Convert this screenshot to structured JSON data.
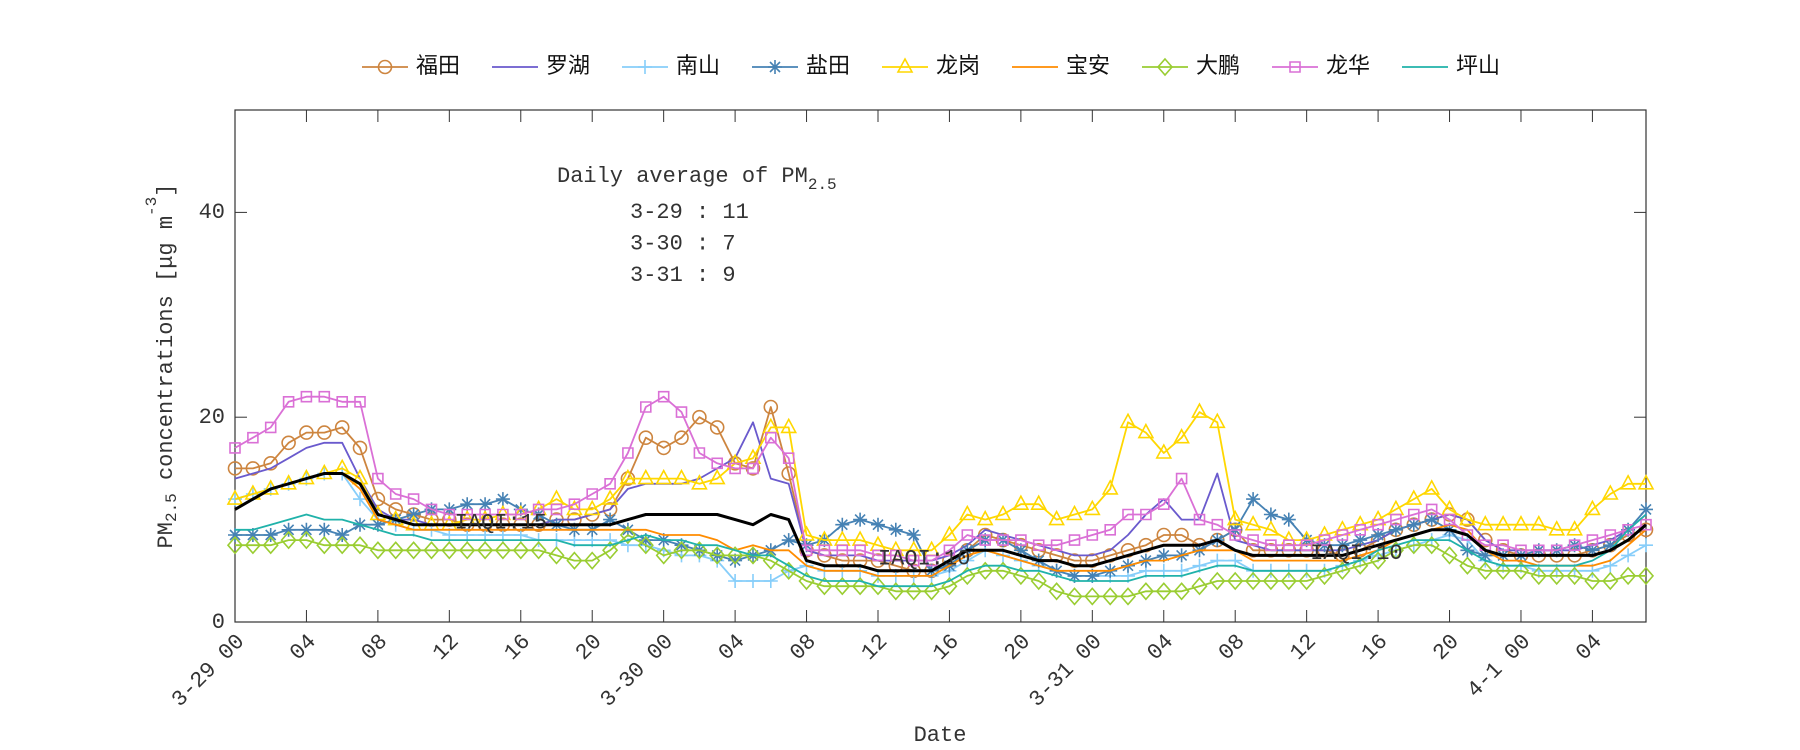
{
  "chart_data": {
    "type": "line",
    "legend": "top",
    "xlabel": "Date",
    "ylabel": [
      "PM",
      "2.5",
      " concentrations [μg m",
      "-3",
      "]"
    ],
    "annotations": {
      "title": [
        "Daily average of PM",
        "2.5"
      ],
      "lines": [
        "3-29 : 11",
        "3-30 : 7",
        "3-31 : 9"
      ],
      "iaqi": [
        "IAQI:15",
        "IAQI:10",
        "IAQI:10"
      ]
    },
    "x": [
      0,
      1,
      2,
      3,
      4,
      5,
      6,
      7,
      8,
      9,
      10,
      11,
      12,
      13,
      14,
      15,
      16,
      17,
      18,
      19,
      20,
      21,
      22,
      23,
      24,
      25,
      26,
      27,
      28,
      29,
      30,
      31,
      32,
      33,
      34,
      35,
      36,
      37,
      38,
      39,
      40,
      41,
      42,
      43,
      44,
      45,
      46,
      47,
      48,
      49,
      50,
      51,
      52,
      53,
      54,
      55,
      56,
      57,
      58,
      59,
      60,
      61,
      62,
      63,
      64,
      65,
      66,
      67,
      68,
      69,
      70,
      71,
      72,
      73,
      74,
      75,
      76,
      77,
      78,
      79
    ],
    "xlim": [
      0,
      79
    ],
    "xticks": [
      {
        "value": 0,
        "label": "3-29 00"
      },
      {
        "value": 4,
        "label": "04"
      },
      {
        "value": 8,
        "label": "08"
      },
      {
        "value": 12,
        "label": "12"
      },
      {
        "value": 16,
        "label": "16"
      },
      {
        "value": 20,
        "label": "20"
      },
      {
        "value": 24,
        "label": "3-30 00"
      },
      {
        "value": 28,
        "label": "04"
      },
      {
        "value": 32,
        "label": "08"
      },
      {
        "value": 36,
        "label": "12"
      },
      {
        "value": 40,
        "label": "16"
      },
      {
        "value": 44,
        "label": "20"
      },
      {
        "value": 48,
        "label": "3-31 00"
      },
      {
        "value": 52,
        "label": "04"
      },
      {
        "value": 56,
        "label": "08"
      },
      {
        "value": 60,
        "label": "12"
      },
      {
        "value": 64,
        "label": "16"
      },
      {
        "value": 68,
        "label": "20"
      },
      {
        "value": 72,
        "label": "4-1 00"
      },
      {
        "value": 76,
        "label": "04"
      }
    ],
    "ylim": [
      0,
      50
    ],
    "yticks": [
      0,
      20,
      40
    ],
    "grid": false,
    "series": [
      {
        "name": "福田",
        "color": "#cd853f",
        "marker": "o",
        "values": [
          15,
          15,
          15.5,
          17.5,
          18.5,
          18.5,
          19,
          17,
          12,
          11,
          10.5,
          10,
          10,
          9.5,
          9.5,
          9.5,
          9.5,
          9.5,
          10,
          10,
          10.5,
          11,
          14,
          18,
          17,
          18,
          20,
          19,
          15.5,
          15,
          21,
          14.5,
          7,
          6.5,
          6,
          6,
          6,
          5.5,
          5,
          5,
          6,
          7,
          8.5,
          8,
          7.5,
          7,
          6.5,
          6,
          6,
          6.5,
          7,
          7.5,
          8.5,
          8.5,
          7.5,
          8,
          9,
          7,
          7,
          7,
          7,
          7,
          6.5,
          7,
          8,
          9,
          9.5,
          10,
          10.5,
          10,
          8,
          7,
          6.5,
          6.5,
          6.5,
          6.5,
          7,
          7.5,
          8.5,
          9
        ]
      },
      {
        "name": "罗湖",
        "color": "#6a5acd",
        "marker": null,
        "values": [
          14,
          14.5,
          15,
          16,
          17,
          17.5,
          17.5,
          14,
          11,
          10,
          10,
          9.5,
          9.5,
          9.5,
          9.5,
          9.5,
          9.5,
          9.5,
          10,
          10,
          10.5,
          11,
          13,
          13.5,
          13.5,
          13.5,
          14,
          15,
          16,
          19.5,
          14,
          13.5,
          7,
          6.5,
          6.5,
          6.5,
          6,
          6,
          6,
          6,
          6.5,
          7.5,
          9,
          8.5,
          8,
          7.5,
          7,
          6.5,
          6.5,
          7,
          8.5,
          10.5,
          12,
          10,
          10,
          14.5,
          8,
          7.5,
          7,
          7,
          7,
          7,
          7,
          7.5,
          8,
          9,
          9.5,
          10,
          10.5,
          10,
          8,
          7,
          7,
          7,
          7,
          7,
          7.5,
          8,
          9,
          10.5
        ]
      },
      {
        "name": "南山",
        "color": "#87cefa",
        "marker": "+",
        "values": [
          12,
          12.5,
          13,
          13.5,
          14,
          14.5,
          14.5,
          12,
          10,
          9.5,
          9,
          9,
          8.5,
          8.5,
          8.5,
          8.5,
          8.5,
          8,
          8,
          8,
          8,
          8,
          7.5,
          7.5,
          7,
          6.5,
          6.5,
          6,
          4,
          4,
          4,
          5,
          5.5,
          5,
          5,
          5,
          4.5,
          4.5,
          4.5,
          4.5,
          5,
          6,
          7,
          6.5,
          6,
          5.5,
          5,
          4.5,
          4.5,
          4.5,
          4.5,
          5,
          5,
          5,
          5.5,
          6,
          6,
          5,
          5,
          5,
          5,
          5,
          5.5,
          6,
          6.5,
          7,
          7.5,
          8,
          8.5,
          8,
          6,
          5.5,
          5.5,
          5,
          5,
          5,
          5,
          5.5,
          6.5,
          7.5
        ]
      },
      {
        "name": "盐田",
        "color": "#4682b4",
        "marker": "*",
        "values": [
          8.5,
          8.5,
          8.5,
          9,
          9,
          9,
          8.5,
          9.5,
          9.5,
          10,
          10.5,
          11,
          11,
          11.5,
          11.5,
          12,
          11,
          10.5,
          9.5,
          9,
          9,
          10,
          9,
          8,
          8,
          7.5,
          7,
          6.5,
          6,
          6.5,
          7,
          8,
          7.5,
          8,
          9.5,
          10,
          9.5,
          9,
          8.5,
          5,
          5.5,
          7,
          8,
          8,
          7,
          6,
          5,
          4.5,
          4.5,
          5,
          5.5,
          6,
          6.5,
          6.5,
          7,
          8,
          9,
          12,
          10.5,
          10,
          8,
          7.5,
          7.5,
          8,
          8.5,
          9,
          9.5,
          10,
          9,
          7,
          6.5,
          6.5,
          6.5,
          7,
          7,
          7.5,
          7,
          7.5,
          9,
          11
        ]
      },
      {
        "name": "龙岗",
        "color": "#ffd700",
        "marker": "^",
        "values": [
          12,
          12.5,
          13,
          13.5,
          14,
          14.5,
          15,
          14,
          10.5,
          10,
          9.5,
          9.5,
          9.5,
          10,
          10,
          10.5,
          10.5,
          11,
          12,
          11,
          11,
          12,
          14,
          14,
          14,
          14,
          13.5,
          14,
          15.5,
          16,
          19,
          19,
          8.5,
          8,
          8,
          8,
          7.5,
          7,
          7,
          7,
          8.5,
          10.5,
          10,
          10.5,
          11.5,
          11.5,
          10,
          10.5,
          11,
          13,
          19.5,
          18.5,
          16.5,
          18,
          20.5,
          19.5,
          10,
          9.5,
          9,
          8,
          8,
          8.5,
          9,
          9.5,
          10,
          11,
          12,
          13,
          11,
          10,
          9.5,
          9.5,
          9.5,
          9.5,
          9,
          9,
          11,
          12.5,
          13.5,
          13.5
        ]
      },
      {
        "name": "宝安",
        "color": "#ff8c00",
        "marker": null,
        "values": [
          11,
          12,
          13,
          13.5,
          14,
          14.5,
          14.5,
          13,
          10,
          9.5,
          9,
          9,
          9,
          9,
          9,
          9,
          9,
          9,
          9,
          9,
          9,
          9,
          9,
          9,
          8.5,
          8.5,
          8.5,
          8,
          7,
          7.5,
          7,
          7,
          5.5,
          5,
          5,
          5,
          4.5,
          4.5,
          4.5,
          4.5,
          5.5,
          6.5,
          7,
          6.5,
          6,
          5.5,
          5,
          5,
          5,
          5,
          5.5,
          6,
          6,
          6.5,
          7,
          7,
          7,
          6,
          6,
          6,
          6,
          6,
          6,
          6.5,
          7,
          8,
          8.5,
          9,
          9.5,
          9,
          7,
          6,
          6,
          5.5,
          5.5,
          5.5,
          5.5,
          6,
          7.5,
          9
        ]
      },
      {
        "name": "大鹏",
        "color": "#9acd32",
        "marker": "d",
        "values": [
          7.5,
          7.5,
          7.5,
          8,
          8,
          7.5,
          7.5,
          7.5,
          7,
          7,
          7,
          7,
          7,
          7,
          7,
          7,
          7,
          7,
          6.5,
          6,
          6,
          7,
          8.5,
          7.5,
          6.5,
          7,
          7,
          6.5,
          6.5,
          6.5,
          6,
          5,
          4,
          3.5,
          3.5,
          3.5,
          3.5,
          3,
          3,
          3,
          3.5,
          4.5,
          5,
          5,
          4.5,
          4,
          3,
          2.5,
          2.5,
          2.5,
          2.5,
          3,
          3,
          3,
          3.5,
          4,
          4,
          4,
          4,
          4,
          4,
          4.5,
          5,
          5.5,
          6,
          7,
          7.5,
          7.5,
          6.5,
          5.5,
          5,
          5,
          5,
          4.5,
          4.5,
          4.5,
          4,
          4,
          4.5,
          4.5
        ]
      },
      {
        "name": "龙华",
        "color": "#da70d6",
        "marker": "s",
        "values": [
          17,
          18,
          19,
          21.5,
          22,
          22,
          21.5,
          21.5,
          14,
          12.5,
          12,
          11,
          10.5,
          10.5,
          10.5,
          10.5,
          10.5,
          11,
          11,
          11.5,
          12.5,
          13.5,
          16.5,
          21,
          22,
          20.5,
          16.5,
          15.5,
          15,
          15,
          18,
          16,
          7,
          7,
          7,
          7,
          6.5,
          6.5,
          6,
          6,
          7,
          8.5,
          8,
          8,
          8,
          7.5,
          7.5,
          8,
          8.5,
          9,
          10.5,
          10.5,
          11.5,
          14,
          10,
          9.5,
          8.5,
          8,
          7.5,
          7.5,
          7.5,
          8,
          8.5,
          9,
          9.5,
          10,
          10.5,
          11,
          10,
          8.5,
          7.5,
          7.5,
          7,
          7,
          7,
          7.5,
          8,
          8.5,
          9,
          9.5
        ]
      },
      {
        "name": "坪山",
        "color": "#20b2aa",
        "marker": null,
        "values": [
          9,
          9,
          9.5,
          10,
          10.5,
          10,
          10,
          9.5,
          9,
          8.5,
          8.5,
          8,
          8,
          8,
          8,
          8,
          8,
          8,
          8,
          7.5,
          7.5,
          7.5,
          8,
          8.5,
          8,
          8,
          7.5,
          7.5,
          7,
          6.5,
          6.5,
          5.5,
          4.5,
          4,
          4,
          4,
          3.5,
          3.5,
          3.5,
          3.5,
          4,
          5,
          5.5,
          5.5,
          5,
          5,
          4.5,
          4,
          4,
          4,
          4,
          4.5,
          4.5,
          4.5,
          5,
          5.5,
          5.5,
          5,
          5,
          5,
          5,
          5,
          5.5,
          6,
          7,
          7.5,
          8,
          8,
          8,
          7,
          6,
          5.5,
          5.5,
          5.5,
          5.5,
          5.5,
          6,
          7,
          9,
          10.5
        ]
      },
      {
        "color": "#000000",
        "marker": null,
        "width": 3,
        "values": [
          11,
          12,
          13,
          13.5,
          14,
          14.5,
          14.5,
          13.5,
          10.5,
          10,
          9.5,
          9.5,
          9.5,
          9.5,
          9.5,
          9.5,
          9.5,
          9.5,
          9.5,
          9.5,
          9.5,
          9.5,
          10,
          10.5,
          10.5,
          10.5,
          10.5,
          10.5,
          10,
          9.5,
          10.5,
          10,
          6,
          5.5,
          5.5,
          5.5,
          5,
          5,
          5,
          5,
          6,
          7,
          7,
          7,
          6.5,
          6,
          6,
          5.5,
          5.5,
          6,
          6.5,
          7,
          7.5,
          7.5,
          7.5,
          8,
          7,
          6.5,
          6.5,
          6.5,
          6.5,
          6.5,
          6.5,
          7,
          7.5,
          8,
          8.5,
          9,
          9,
          8.5,
          7,
          6.5,
          6.5,
          6.5,
          6.5,
          6.5,
          6.5,
          7,
          8,
          9.5
        ]
      }
    ]
  }
}
